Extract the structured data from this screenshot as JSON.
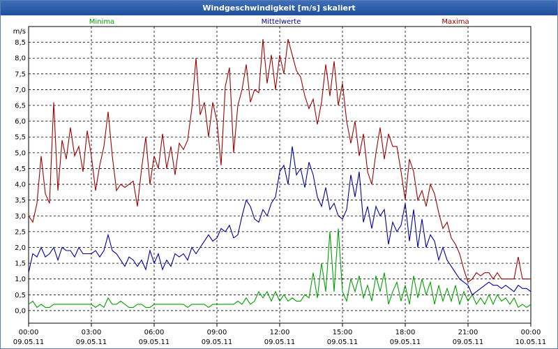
{
  "window": {
    "title": "Windgeschwindigkeit [m/s] skaliert"
  },
  "chart_data": {
    "type": "line",
    "title": "Windgeschwindigkeit [m/s] skaliert",
    "ylabel": "m/s",
    "ylim": [
      -0.4,
      9.0
    ],
    "yticks": [
      0.0,
      0.5,
      1.0,
      1.5,
      2.0,
      2.5,
      3.0,
      3.5,
      4.0,
      4.5,
      5.0,
      5.5,
      6.0,
      6.5,
      7.0,
      7.5,
      8.0,
      8.5
    ],
    "ytick_labels": [
      "0,0",
      "0,5",
      "1,0",
      "1,5",
      "2,0",
      "2,5",
      "3,0",
      "3,5",
      "4,0",
      "4,5",
      "5,0",
      "5,5",
      "6,0",
      "6,5",
      "7,0",
      "7,5",
      "8,0",
      "8,5"
    ],
    "xlim": [
      0,
      24
    ],
    "xticks": [
      {
        "hour": 0,
        "time": "00:00",
        "date": "09.05.11"
      },
      {
        "hour": 3,
        "time": "03:00",
        "date": "09.05.11"
      },
      {
        "hour": 6,
        "time": "06:00",
        "date": "09.05.11"
      },
      {
        "hour": 9,
        "time": "09:00",
        "date": "09.05.11"
      },
      {
        "hour": 12,
        "time": "12:00",
        "date": "09.05.11"
      },
      {
        "hour": 15,
        "time": "15:00",
        "date": "09.05.11"
      },
      {
        "hour": 18,
        "time": "18:00",
        "date": "09.05.11"
      },
      {
        "hour": 21,
        "time": "21:00",
        "date": "09.05.11"
      },
      {
        "hour": 24,
        "time": "00:00",
        "date": "10.05.11"
      }
    ],
    "grid": true,
    "legend_position": "top",
    "series": [
      {
        "name": "Minima",
        "color": "#00a000",
        "x": [
          0,
          0.2,
          0.4,
          0.6,
          0.8,
          1,
          1.2,
          1.4,
          1.6,
          1.8,
          2,
          2.2,
          2.4,
          2.6,
          2.8,
          3,
          3.2,
          3.4,
          3.6,
          3.8,
          4,
          4.2,
          4.4,
          4.6,
          4.8,
          5,
          5.2,
          5.4,
          5.6,
          5.8,
          6,
          6.2,
          6.4,
          6.6,
          6.8,
          7,
          7.2,
          7.4,
          7.6,
          7.8,
          8,
          8.2,
          8.4,
          8.6,
          8.8,
          9,
          9.2,
          9.4,
          9.6,
          9.8,
          10,
          10.2,
          10.4,
          10.6,
          10.8,
          11,
          11.2,
          11.4,
          11.6,
          11.8,
          12,
          12.2,
          12.4,
          12.6,
          12.8,
          13,
          13.2,
          13.4,
          13.6,
          13.8,
          14,
          14.2,
          14.4,
          14.6,
          14.8,
          15,
          15.2,
          15.4,
          15.6,
          15.8,
          16,
          16.2,
          16.4,
          16.6,
          16.8,
          17,
          17.2,
          17.4,
          17.6,
          17.8,
          18,
          18.2,
          18.4,
          18.6,
          18.8,
          19,
          19.2,
          19.4,
          19.6,
          19.8,
          20,
          20.2,
          20.4,
          20.6,
          20.8,
          21,
          21.2,
          21.4,
          21.6,
          21.8,
          22,
          22.2,
          22.4,
          22.6,
          22.8,
          23,
          23.2,
          23.4,
          23.6,
          23.8,
          24
        ],
        "values": [
          0.2,
          0.3,
          0.1,
          0.2,
          0.1,
          0.1,
          0.2,
          0.2,
          0.2,
          0.2,
          0.2,
          0.2,
          0.2,
          0.2,
          0.2,
          0.2,
          0.1,
          0.2,
          0.1,
          0.4,
          0.2,
          0.2,
          0.3,
          0.2,
          0.1,
          0.1,
          0.2,
          0.2,
          0.1,
          0.1,
          0.2,
          0.2,
          0.2,
          0.2,
          0.2,
          0.2,
          0.2,
          0.2,
          0.1,
          0.2,
          0.2,
          0.2,
          0.2,
          0.1,
          0.2,
          0.2,
          0.2,
          0.2,
          0.2,
          0.2,
          0.3,
          0.2,
          0.4,
          0.2,
          0.3,
          0.6,
          0.4,
          0.6,
          0.3,
          0.6,
          0.3,
          0.5,
          0.3,
          0.4,
          0.3,
          0.3,
          0.5,
          0.4,
          1.2,
          0.4,
          1.5,
          0.6,
          2.5,
          0.6,
          2.6,
          0.6,
          0.3,
          1.0,
          0.6,
          1.1,
          0.4,
          0.8,
          0.3,
          1.1,
          0.6,
          1.2,
          0.2,
          0.6,
          0.9,
          0.3,
          0.8,
          0.2,
          1.1,
          0.4,
          1.0,
          0.5,
          0.9,
          0.2,
          0.8,
          0.3,
          0.7,
          0.3,
          0.8,
          0.2,
          0.6,
          0.3,
          0.5,
          0.2,
          0.4,
          0.2,
          0.5,
          0.2,
          0.5,
          0.3,
          0.4,
          0.2,
          0.4,
          0.1,
          0.2,
          0.1,
          0.2
        ],
        "stroke_hint": "green"
      },
      {
        "name": "Mittelwerte",
        "color": "#0000a0",
        "x": [
          0,
          0.2,
          0.4,
          0.6,
          0.8,
          1,
          1.2,
          1.4,
          1.6,
          1.8,
          2,
          2.2,
          2.4,
          2.6,
          2.8,
          3,
          3.2,
          3.4,
          3.6,
          3.8,
          4,
          4.2,
          4.4,
          4.6,
          4.8,
          5,
          5.2,
          5.4,
          5.6,
          5.8,
          6,
          6.2,
          6.4,
          6.6,
          6.8,
          7,
          7.2,
          7.4,
          7.6,
          7.8,
          8,
          8.2,
          8.4,
          8.6,
          8.8,
          9,
          9.2,
          9.4,
          9.6,
          9.8,
          10,
          10.2,
          10.4,
          10.6,
          10.8,
          11,
          11.2,
          11.4,
          11.6,
          11.8,
          12,
          12.2,
          12.4,
          12.6,
          12.8,
          13,
          13.2,
          13.4,
          13.6,
          13.8,
          14,
          14.2,
          14.4,
          14.6,
          14.8,
          15,
          15.2,
          15.4,
          15.6,
          15.8,
          16,
          16.2,
          16.4,
          16.6,
          16.8,
          17,
          17.2,
          17.4,
          17.6,
          17.8,
          18,
          18.2,
          18.4,
          18.6,
          18.8,
          19,
          19.2,
          19.4,
          19.6,
          19.8,
          20,
          20.2,
          20.4,
          20.6,
          20.8,
          21,
          21.2,
          21.4,
          21.6,
          21.8,
          22,
          22.2,
          22.4,
          22.6,
          22.8,
          23,
          23.2,
          23.4,
          23.6,
          23.8,
          24
        ],
        "values": [
          1.2,
          1.8,
          1.7,
          2.0,
          1.7,
          1.8,
          2.0,
          1.6,
          2.0,
          1.9,
          1.9,
          1.7,
          2.0,
          1.8,
          1.8,
          1.8,
          1.9,
          1.7,
          1.9,
          2.4,
          1.9,
          1.8,
          1.6,
          1.4,
          1.7,
          1.6,
          1.4,
          1.6,
          1.3,
          1.9,
          1.5,
          1.8,
          1.3,
          1.6,
          1.4,
          1.8,
          1.7,
          1.8,
          1.6,
          2.0,
          1.8,
          2.0,
          2.2,
          2.4,
          2.2,
          2.3,
          2.6,
          2.5,
          2.7,
          2.3,
          2.4,
          3.0,
          3.5,
          3.3,
          2.9,
          2.8,
          3.2,
          3.0,
          3.4,
          3.6,
          4.4,
          4.6,
          4.0,
          5.2,
          4.3,
          4.5,
          3.9,
          4.7,
          4.3,
          3.6,
          3.3,
          3.9,
          3.2,
          3.4,
          3.0,
          2.9,
          3.2,
          4.3,
          3.6,
          4.4,
          2.8,
          3.3,
          2.6,
          3.3,
          3.0,
          3.2,
          2.1,
          2.8,
          2.5,
          2.7,
          3.4,
          2.2,
          3.2,
          2.0,
          2.9,
          2.0,
          2.4,
          2.2,
          1.6,
          2.0,
          1.6,
          1.4,
          1.2,
          1.0,
          0.9,
          0.8,
          0.5,
          0.6,
          0.7,
          0.8,
          0.9,
          0.8,
          0.8,
          0.7,
          0.8,
          0.7,
          0.6,
          0.8,
          0.7,
          0.7,
          0.6
        ],
        "stroke_hint": "blue"
      },
      {
        "name": "Maxima",
        "color": "#a00000",
        "x": [
          0,
          0.2,
          0.4,
          0.6,
          0.8,
          1,
          1.2,
          1.4,
          1.6,
          1.8,
          2,
          2.2,
          2.4,
          2.6,
          2.8,
          3,
          3.2,
          3.4,
          3.6,
          3.8,
          4,
          4.2,
          4.4,
          4.6,
          4.8,
          5,
          5.2,
          5.4,
          5.6,
          5.8,
          6,
          6.2,
          6.4,
          6.6,
          6.8,
          7,
          7.2,
          7.4,
          7.6,
          7.8,
          8,
          8.2,
          8.4,
          8.6,
          8.8,
          9,
          9.2,
          9.4,
          9.6,
          9.8,
          10,
          10.2,
          10.4,
          10.6,
          10.8,
          11,
          11.2,
          11.4,
          11.6,
          11.8,
          12,
          12.2,
          12.4,
          12.6,
          12.8,
          13,
          13.2,
          13.4,
          13.6,
          13.8,
          14,
          14.2,
          14.4,
          14.6,
          14.8,
          15,
          15.2,
          15.4,
          15.6,
          15.8,
          16,
          16.2,
          16.4,
          16.6,
          16.8,
          17,
          17.2,
          17.4,
          17.6,
          17.8,
          18,
          18.2,
          18.4,
          18.6,
          18.8,
          19,
          19.2,
          19.4,
          19.6,
          19.8,
          20,
          20.2,
          20.4,
          20.6,
          20.8,
          21,
          21.2,
          21.4,
          21.6,
          21.8,
          22,
          22.2,
          22.4,
          22.6,
          22.8,
          23,
          23.2,
          23.4,
          23.6,
          23.8,
          24
        ],
        "values": [
          3.0,
          2.8,
          3.4,
          4.9,
          3.7,
          3.4,
          6.6,
          3.8,
          5.4,
          4.8,
          5.8,
          4.9,
          5.2,
          4.4,
          5.7,
          4.9,
          3.8,
          4.6,
          5.2,
          6.3,
          4.9,
          3.8,
          4.0,
          3.9,
          4.0,
          4.1,
          3.3,
          4.5,
          5.5,
          4.0,
          4.9,
          4.5,
          5.6,
          4.5,
          5.2,
          4.3,
          5.3,
          5.1,
          5.4,
          6.4,
          8.0,
          6.2,
          6.6,
          5.5,
          6.6,
          6.0,
          4.6,
          7.1,
          7.7,
          5.0,
          6.5,
          7.0,
          7.8,
          6.6,
          7.0,
          6.9,
          8.6,
          7.2,
          8.1,
          7.0,
          8.1,
          7.5,
          8.6,
          8.1,
          7.6,
          7.4,
          6.8,
          6.4,
          6.7,
          5.9,
          6.6,
          7.8,
          6.8,
          7.9,
          6.5,
          7.2,
          6.0,
          5.3,
          6.0,
          4.9,
          5.6,
          4.4,
          4.0,
          5.0,
          5.8,
          4.8,
          5.6,
          5.2,
          5.2,
          4.4,
          3.5,
          4.8,
          4.4,
          3.5,
          3.8,
          3.3,
          4.0,
          3.7,
          3.1,
          2.6,
          2.8,
          2.3,
          2.1,
          1.8,
          1.3,
          0.9,
          1.0,
          1.2,
          1.1,
          1.2,
          1.2,
          1.0,
          1.2,
          1.0,
          1.0,
          1.0,
          1.0,
          1.7,
          1.0,
          1.0,
          1.0
        ],
        "stroke_hint": "darkred"
      }
    ]
  }
}
